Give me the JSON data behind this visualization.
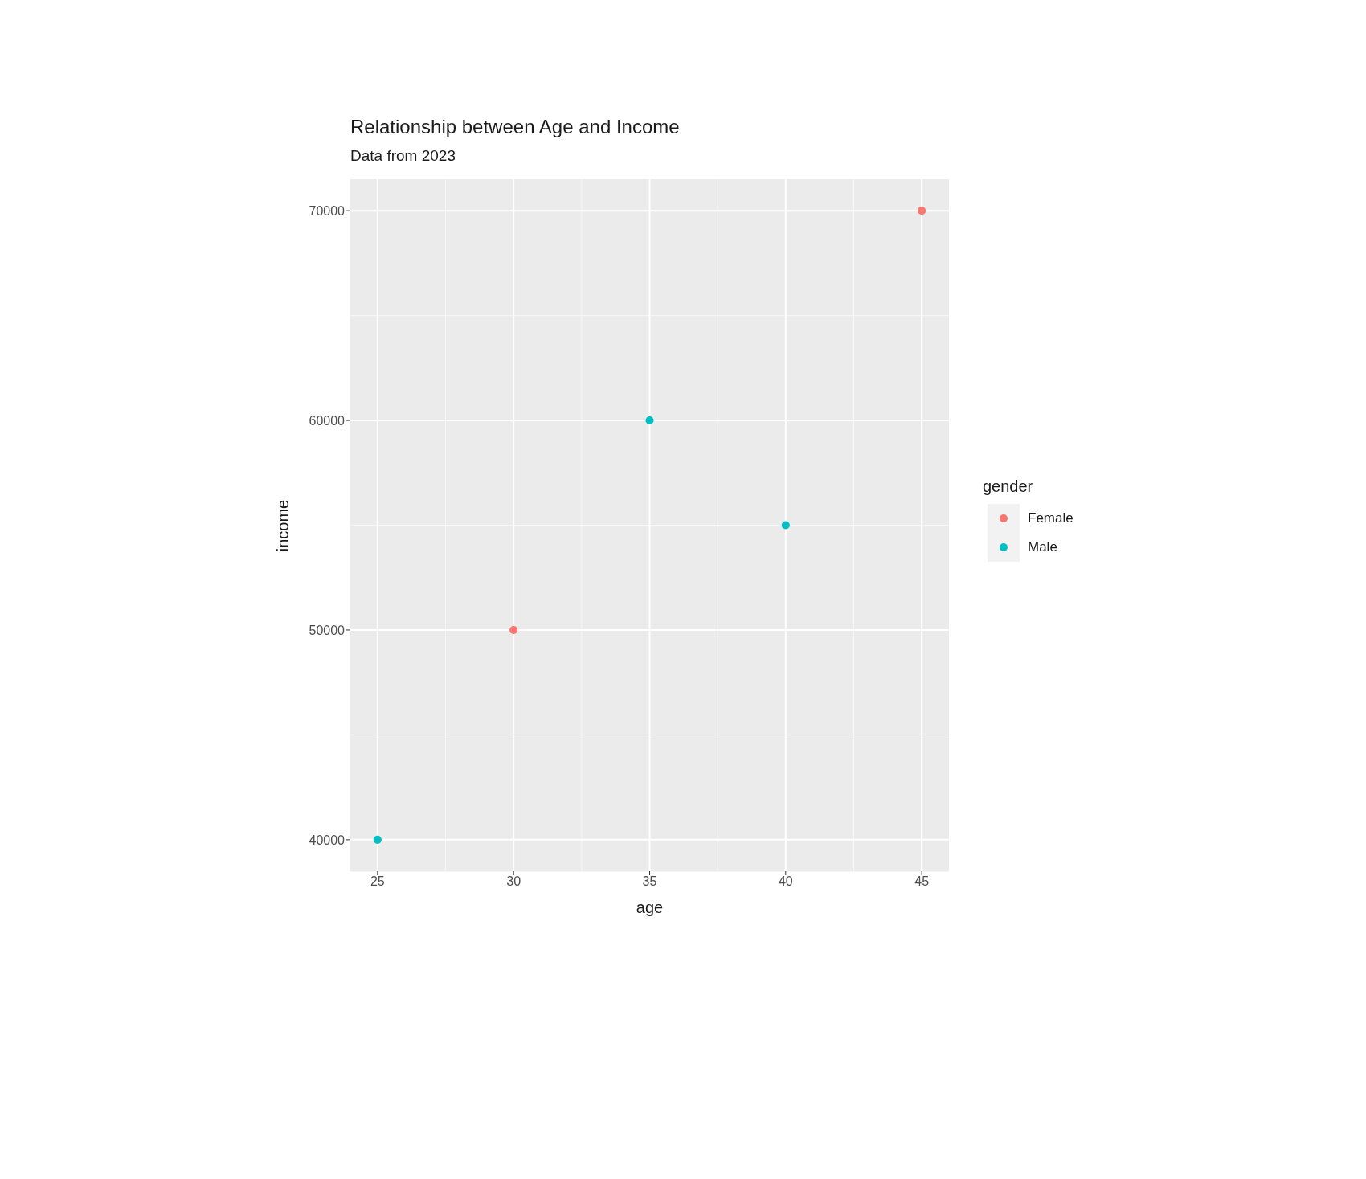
{
  "chart_data": {
    "type": "scatter",
    "title": "Relationship between Age and Income",
    "subtitle": "Data from 2023",
    "xlabel": "age",
    "ylabel": "income",
    "legend_title": "gender",
    "series": [
      {
        "name": "Female",
        "color": "#f8766d",
        "x": [
          30,
          45
        ],
        "values": [
          50000,
          70000
        ]
      },
      {
        "name": "Male",
        "color": "#00bfc4",
        "x": [
          25,
          35,
          40
        ],
        "values": [
          40000,
          60000,
          55000
        ]
      }
    ],
    "xlim": [
      24,
      46
    ],
    "ylim": [
      38500,
      71500
    ],
    "xticks": [
      25,
      30,
      35,
      40,
      45
    ],
    "yticks": [
      40000,
      50000,
      60000,
      70000
    ],
    "grid": true,
    "legend": "right",
    "marker": "circle"
  }
}
